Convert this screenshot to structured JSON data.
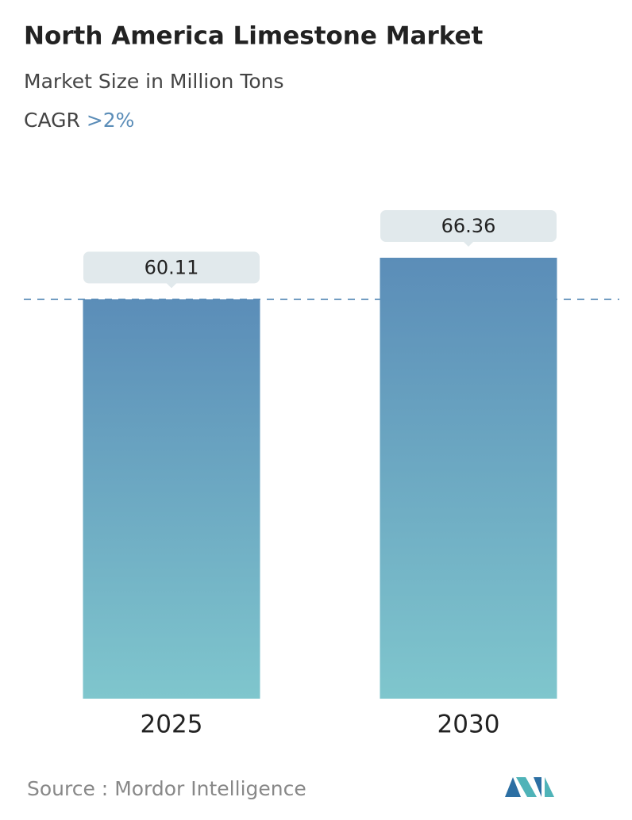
{
  "chart_data": {
    "type": "bar",
    "title": "North America Limestone Market",
    "subtitle": "Market Size in Million Tons",
    "cagr_label": "CAGR",
    "cagr_value": ">2%",
    "categories": [
      "2025",
      "2030"
    ],
    "values": [
      60.11,
      66.36
    ],
    "color_top": "#5b8db8",
    "color_bottom": "#7fc6cd",
    "reference_line": true,
    "source_label": "Source :",
    "source": "Mordor Intelligence"
  }
}
